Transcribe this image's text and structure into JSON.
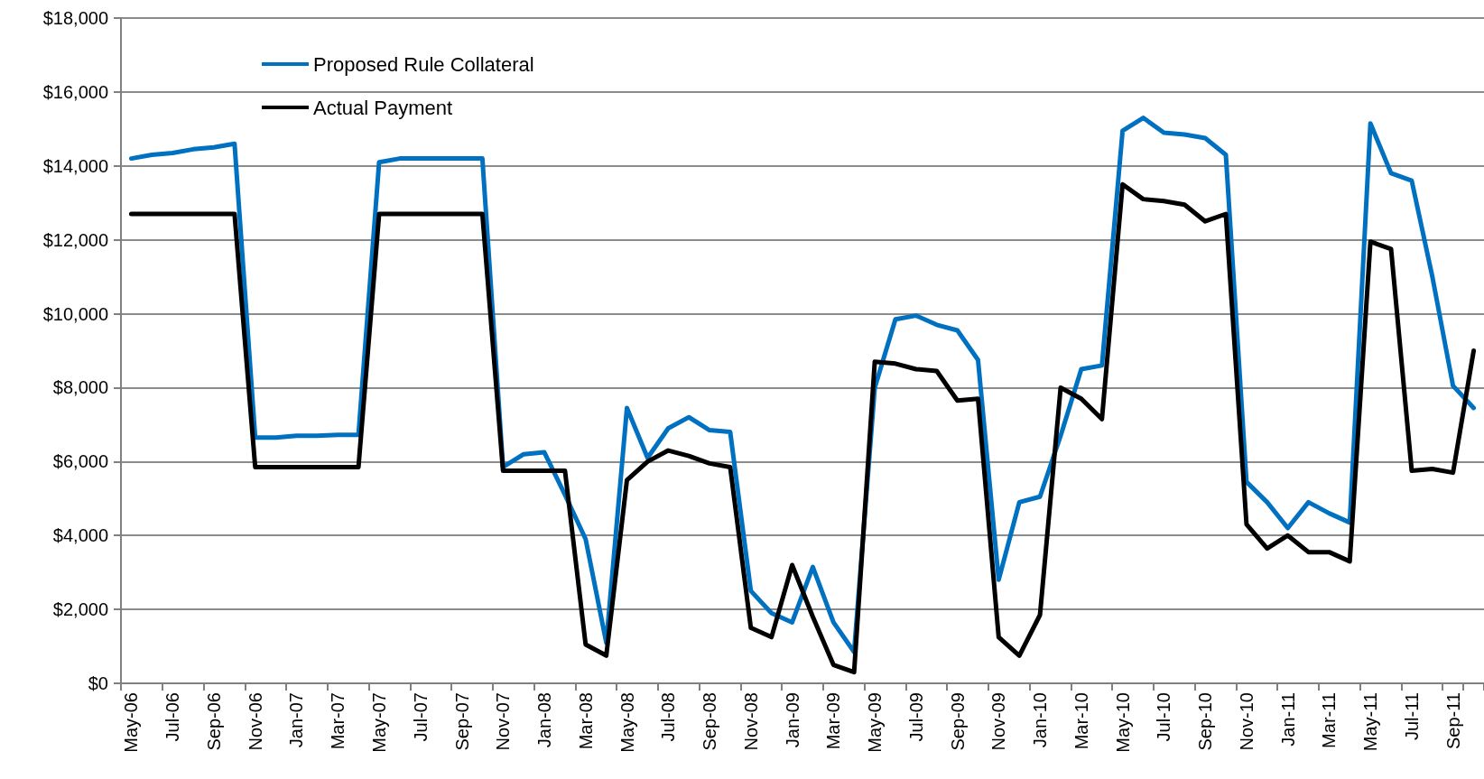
{
  "chart_data": {
    "type": "line",
    "categories": [
      "May-06",
      null,
      "Jul-06",
      null,
      "Sep-06",
      null,
      "Nov-06",
      null,
      "Jan-07",
      null,
      "Mar-07",
      null,
      "May-07",
      null,
      "Jul-07",
      null,
      "Sep-07",
      null,
      "Nov-07",
      null,
      "Jan-08",
      null,
      "Mar-08",
      null,
      "May-08",
      null,
      "Jul-08",
      null,
      "Sep-08",
      null,
      "Nov-08",
      null,
      "Jan-09",
      null,
      "Mar-09",
      null,
      "May-09",
      null,
      "Jul-09",
      null,
      "Sep-09",
      null,
      "Nov-09",
      null,
      "Jan-10",
      null,
      "Mar-10",
      null,
      "May-10",
      null,
      "Jul-10",
      null,
      "Sep-10",
      null,
      "Nov-10",
      null,
      "Jan-11",
      null,
      "Mar-11",
      null,
      "May-11",
      null,
      "Jul-11",
      null,
      "Sep-11",
      null
    ],
    "series": [
      {
        "name": "Proposed Rule Collateral",
        "color": "#0070c0",
        "values": [
          14200,
          14300,
          14350,
          14450,
          14500,
          14600,
          6650,
          6650,
          6700,
          6700,
          6720,
          6720,
          14100,
          14200,
          14200,
          14200,
          14200,
          14200,
          5850,
          6200,
          6250,
          5100,
          3900,
          1100,
          7450,
          6100,
          6900,
          7200,
          6850,
          6800,
          2500,
          1900,
          1650,
          3150,
          1650,
          850,
          8000,
          9850,
          9950,
          9700,
          9550,
          8750,
          2800,
          4900,
          5050,
          6700,
          8500,
          8600,
          14950,
          15300,
          14900,
          14850,
          14750,
          14300,
          5450,
          4900,
          4200,
          4900,
          4600,
          4350,
          15150,
          13800,
          13600,
          11000,
          8050,
          7450
        ]
      },
      {
        "name": "Actual Payment",
        "color": "#000000",
        "values": [
          12700,
          12700,
          12700,
          12700,
          12700,
          12700,
          5850,
          5850,
          5850,
          5850,
          5850,
          5850,
          12700,
          12700,
          12700,
          12700,
          12700,
          12700,
          5750,
          5750,
          5750,
          5750,
          1050,
          750,
          5500,
          6000,
          6300,
          6150,
          5950,
          5850,
          1500,
          1250,
          3200,
          1800,
          500,
          300,
          8700,
          8650,
          8500,
          8450,
          7650,
          7700,
          1250,
          750,
          1850,
          8000,
          7700,
          7150,
          13500,
          13100,
          13050,
          12950,
          12500,
          12700,
          4300,
          3650,
          4000,
          3550,
          3550,
          3300,
          11950,
          11750,
          5750,
          5800,
          5700,
          9000
        ]
      }
    ],
    "ylim": [
      0,
      18000
    ],
    "yticks": [
      {
        "value": 0,
        "label": "$0"
      },
      {
        "value": 2000,
        "label": "$2,000"
      },
      {
        "value": 4000,
        "label": "$4,000"
      },
      {
        "value": 6000,
        "label": "$6,000"
      },
      {
        "value": 8000,
        "label": "$8,000"
      },
      {
        "value": 10000,
        "label": "$10,000"
      },
      {
        "value": 12000,
        "label": "$12,000"
      },
      {
        "value": 14000,
        "label": "$14,000"
      },
      {
        "value": 16000,
        "label": "$16,000"
      },
      {
        "value": 18000,
        "label": "$18,000"
      }
    ],
    "grid": "y",
    "legend": "top left",
    "marker": "none",
    "line_style": "solid"
  }
}
